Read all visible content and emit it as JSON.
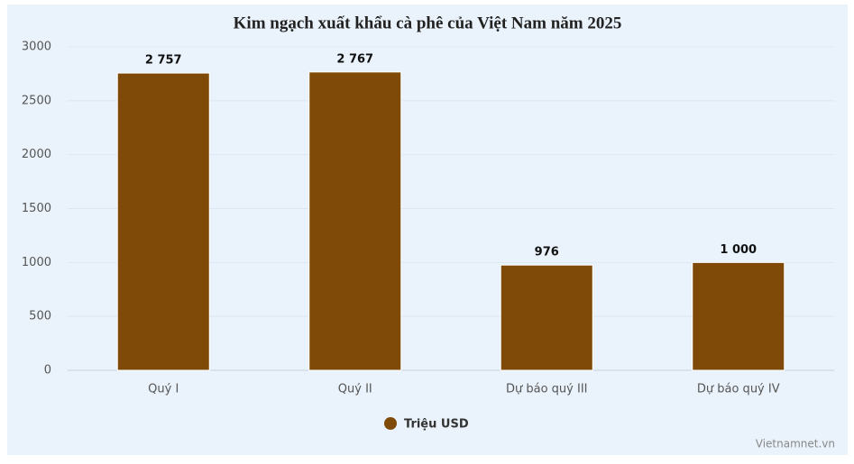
{
  "chart_data": {
    "type": "bar",
    "title": "Kim ngạch xuất khẩu cà phê của Việt Nam năm 2025",
    "categories": [
      "Quý I",
      "Quý II",
      "Dự báo quý III",
      "Dự báo quý IV"
    ],
    "series": [
      {
        "name": "Triệu USD",
        "color": "#7f4a07",
        "values": [
          2757,
          2767,
          976,
          1000
        ],
        "value_labels": [
          "2 757",
          "2 767",
          "976",
          "1 000"
        ]
      }
    ],
    "ylim": [
      0,
      3000
    ],
    "yticks": [
      0,
      500,
      1000,
      1500,
      2000,
      2500,
      3000
    ],
    "grid": true,
    "legend": "bottom",
    "credit": "Vietnamnet.vn"
  }
}
